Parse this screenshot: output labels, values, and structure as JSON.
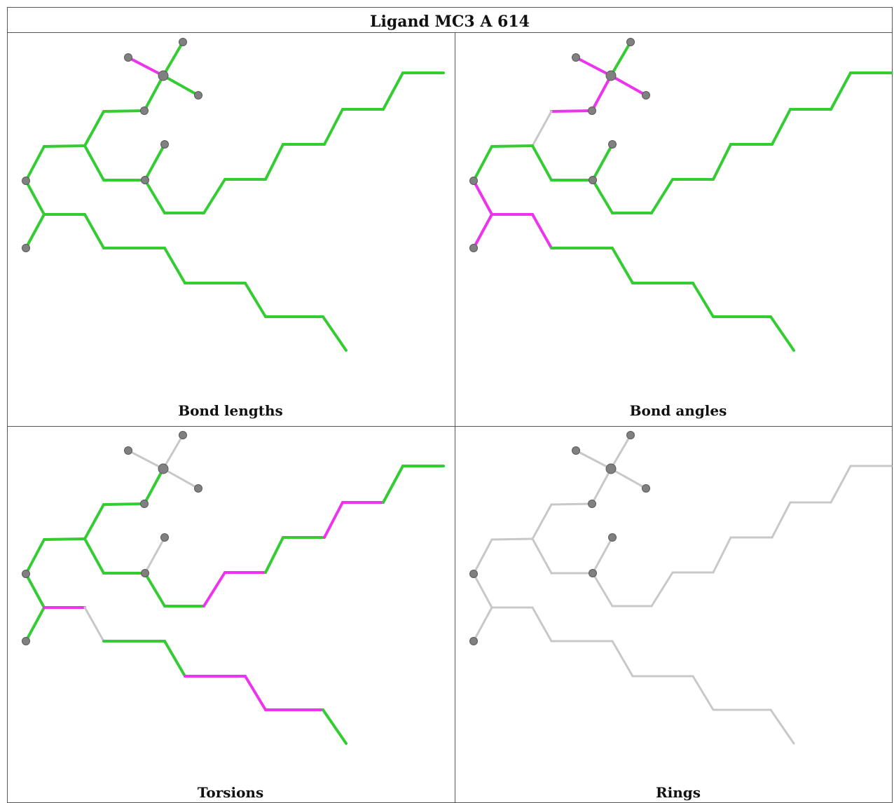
{
  "title": "Ligand MC3 A 614",
  "panels": [
    {
      "caption": "Bond lengths"
    },
    {
      "caption": "Bond angles"
    },
    {
      "caption": "Torsions"
    },
    {
      "caption": "Rings"
    }
  ],
  "colors": {
    "ok": "#33cc33",
    "outlier": "#ee33ee",
    "neutral": "#c8c8c8",
    "atom": "#808080"
  },
  "bond_colors": {
    "bond_lengths": [
      "ok",
      "outlier",
      "ok",
      "ok",
      "ok",
      "ok",
      "ok",
      "ok",
      "ok",
      "ok",
      "ok",
      "ok",
      "ok",
      "ok",
      "ok",
      "ok",
      "ok",
      "ok",
      "ok",
      "ok",
      "ok",
      "ok",
      "ok",
      "ok",
      "ok",
      "ok",
      "ok",
      "ok",
      "ok",
      "ok",
      "ok",
      "ok",
      "ok",
      "ok"
    ],
    "bond_angles": [
      "ok",
      "outlier",
      "outlier",
      "outlier",
      "outlier",
      "neutral",
      "ok",
      "ok",
      "outlier",
      "outlier",
      "outlier",
      "outlier",
      "ok",
      "ok",
      "ok",
      "ok",
      "ok",
      "ok",
      "ok",
      "ok",
      "ok",
      "ok",
      "ok",
      "ok",
      "ok",
      "ok",
      "ok",
      "ok",
      "ok",
      "ok",
      "ok",
      "ok",
      "ok",
      "ok"
    ],
    "torsions": [
      "neutral",
      "neutral",
      "neutral",
      "ok",
      "ok",
      "ok",
      "ok",
      "ok",
      "ok",
      "ok",
      "outlier",
      "neutral",
      "ok",
      "ok",
      "outlier",
      "outlier",
      "outlier",
      "ok",
      "ok",
      "ok",
      "neutral",
      "ok",
      "ok",
      "outlier",
      "outlier",
      "ok",
      "ok",
      "outlier",
      "outlier",
      "ok",
      "ok",
      "ok",
      "ok",
      "neutral"
    ],
    "rings": [
      "neutral",
      "neutral",
      "neutral",
      "neutral",
      "neutral",
      "neutral",
      "neutral",
      "neutral",
      "neutral",
      "neutral",
      "neutral",
      "neutral",
      "neutral",
      "neutral",
      "neutral",
      "neutral",
      "neutral",
      "neutral",
      "neutral",
      "neutral",
      "neutral",
      "neutral",
      "neutral",
      "neutral",
      "neutral",
      "neutral",
      "neutral",
      "neutral",
      "neutral",
      "neutral",
      "neutral",
      "neutral",
      "neutral",
      "neutral"
    ]
  }
}
